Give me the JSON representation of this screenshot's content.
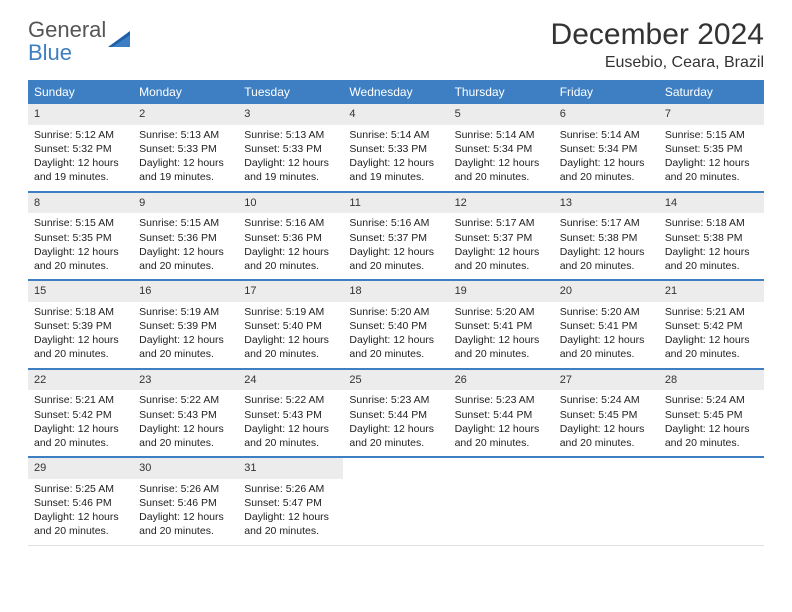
{
  "logo": {
    "line1": "General",
    "line2": "Blue"
  },
  "title": "December 2024",
  "location": "Eusebio, Ceara, Brazil",
  "colors": {
    "header_bg": "#3d7fc2",
    "header_text": "#ffffff",
    "daynum_bg": "#ececec",
    "row_sep": "#3d7fc2",
    "text": "#222222",
    "logo_blue": "#3d7fc2"
  },
  "weekdays": [
    "Sunday",
    "Monday",
    "Tuesday",
    "Wednesday",
    "Thursday",
    "Friday",
    "Saturday"
  ],
  "weeks": [
    [
      {
        "n": "1",
        "sr": "5:12 AM",
        "ss": "5:32 PM",
        "dl": "12 hours and 19 minutes."
      },
      {
        "n": "2",
        "sr": "5:13 AM",
        "ss": "5:33 PM",
        "dl": "12 hours and 19 minutes."
      },
      {
        "n": "3",
        "sr": "5:13 AM",
        "ss": "5:33 PM",
        "dl": "12 hours and 19 minutes."
      },
      {
        "n": "4",
        "sr": "5:14 AM",
        "ss": "5:33 PM",
        "dl": "12 hours and 19 minutes."
      },
      {
        "n": "5",
        "sr": "5:14 AM",
        "ss": "5:34 PM",
        "dl": "12 hours and 20 minutes."
      },
      {
        "n": "6",
        "sr": "5:14 AM",
        "ss": "5:34 PM",
        "dl": "12 hours and 20 minutes."
      },
      {
        "n": "7",
        "sr": "5:15 AM",
        "ss": "5:35 PM",
        "dl": "12 hours and 20 minutes."
      }
    ],
    [
      {
        "n": "8",
        "sr": "5:15 AM",
        "ss": "5:35 PM",
        "dl": "12 hours and 20 minutes."
      },
      {
        "n": "9",
        "sr": "5:15 AM",
        "ss": "5:36 PM",
        "dl": "12 hours and 20 minutes."
      },
      {
        "n": "10",
        "sr": "5:16 AM",
        "ss": "5:36 PM",
        "dl": "12 hours and 20 minutes."
      },
      {
        "n": "11",
        "sr": "5:16 AM",
        "ss": "5:37 PM",
        "dl": "12 hours and 20 minutes."
      },
      {
        "n": "12",
        "sr": "5:17 AM",
        "ss": "5:37 PM",
        "dl": "12 hours and 20 minutes."
      },
      {
        "n": "13",
        "sr": "5:17 AM",
        "ss": "5:38 PM",
        "dl": "12 hours and 20 minutes."
      },
      {
        "n": "14",
        "sr": "5:18 AM",
        "ss": "5:38 PM",
        "dl": "12 hours and 20 minutes."
      }
    ],
    [
      {
        "n": "15",
        "sr": "5:18 AM",
        "ss": "5:39 PM",
        "dl": "12 hours and 20 minutes."
      },
      {
        "n": "16",
        "sr": "5:19 AM",
        "ss": "5:39 PM",
        "dl": "12 hours and 20 minutes."
      },
      {
        "n": "17",
        "sr": "5:19 AM",
        "ss": "5:40 PM",
        "dl": "12 hours and 20 minutes."
      },
      {
        "n": "18",
        "sr": "5:20 AM",
        "ss": "5:40 PM",
        "dl": "12 hours and 20 minutes."
      },
      {
        "n": "19",
        "sr": "5:20 AM",
        "ss": "5:41 PM",
        "dl": "12 hours and 20 minutes."
      },
      {
        "n": "20",
        "sr": "5:20 AM",
        "ss": "5:41 PM",
        "dl": "12 hours and 20 minutes."
      },
      {
        "n": "21",
        "sr": "5:21 AM",
        "ss": "5:42 PM",
        "dl": "12 hours and 20 minutes."
      }
    ],
    [
      {
        "n": "22",
        "sr": "5:21 AM",
        "ss": "5:42 PM",
        "dl": "12 hours and 20 minutes."
      },
      {
        "n": "23",
        "sr": "5:22 AM",
        "ss": "5:43 PM",
        "dl": "12 hours and 20 minutes."
      },
      {
        "n": "24",
        "sr": "5:22 AM",
        "ss": "5:43 PM",
        "dl": "12 hours and 20 minutes."
      },
      {
        "n": "25",
        "sr": "5:23 AM",
        "ss": "5:44 PM",
        "dl": "12 hours and 20 minutes."
      },
      {
        "n": "26",
        "sr": "5:23 AM",
        "ss": "5:44 PM",
        "dl": "12 hours and 20 minutes."
      },
      {
        "n": "27",
        "sr": "5:24 AM",
        "ss": "5:45 PM",
        "dl": "12 hours and 20 minutes."
      },
      {
        "n": "28",
        "sr": "5:24 AM",
        "ss": "5:45 PM",
        "dl": "12 hours and 20 minutes."
      }
    ],
    [
      {
        "n": "29",
        "sr": "5:25 AM",
        "ss": "5:46 PM",
        "dl": "12 hours and 20 minutes."
      },
      {
        "n": "30",
        "sr": "5:26 AM",
        "ss": "5:46 PM",
        "dl": "12 hours and 20 minutes."
      },
      {
        "n": "31",
        "sr": "5:26 AM",
        "ss": "5:47 PM",
        "dl": "12 hours and 20 minutes."
      },
      null,
      null,
      null,
      null
    ]
  ],
  "labels": {
    "sunrise": "Sunrise:",
    "sunset": "Sunset:",
    "daylight": "Daylight:"
  }
}
